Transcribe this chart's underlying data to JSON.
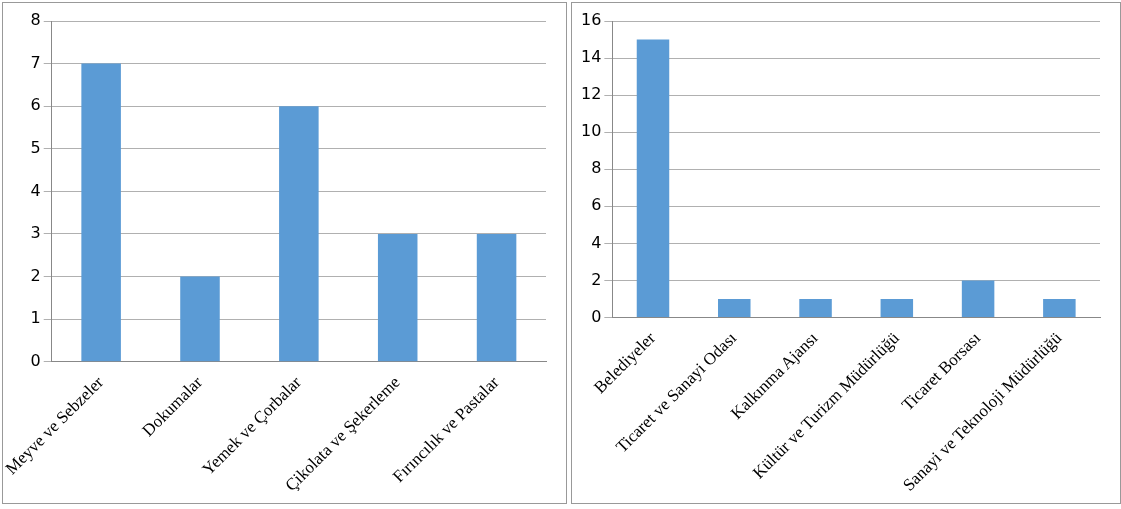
{
  "chart_data": [
    {
      "type": "bar",
      "categories": [
        "Meyve ve Sebzeler",
        "Dokumalar",
        "Yemek ve Çorbalar",
        "Çikolata ve Şekerleme",
        "Fırıncılık ve Pastalar"
      ],
      "values": [
        7,
        2,
        6,
        3,
        3
      ],
      "color": "#5b9bd5",
      "ylim": [
        0,
        8
      ],
      "yticks": [
        0,
        1,
        2,
        3,
        4,
        5,
        6,
        7,
        8
      ],
      "grid": "y",
      "legend": false
    },
    {
      "type": "bar",
      "categories": [
        "Belediyeler",
        "Ticaret ve Sanayi Odası",
        "Kalkınma Ajansı",
        "Kültür ve Turizm Müdürlüğü",
        "Ticaret Borsası",
        "Sanayi ve Teknoloji Müdürlüğü"
      ],
      "values": [
        15,
        1,
        1,
        1,
        2,
        1
      ],
      "color": "#5b9bd5",
      "ylim": [
        0,
        16
      ],
      "yticks": [
        0,
        2,
        4,
        6,
        8,
        10,
        12,
        14,
        16
      ],
      "grid": "y",
      "legend": false
    }
  ]
}
